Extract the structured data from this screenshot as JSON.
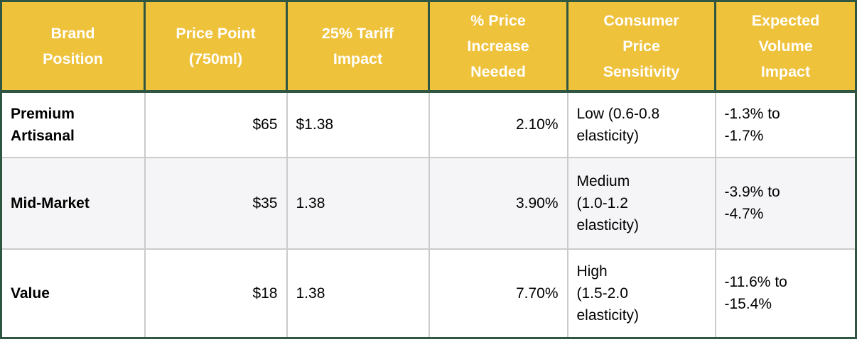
{
  "colors": {
    "header_bg": "#EFC23C",
    "header_text": "#FFFFFF",
    "outer_border": "#2E5640",
    "inner_border": "#CBCBCB",
    "alt_row_bg": "#F5F5F7",
    "body_text": "#000000"
  },
  "table": {
    "headers": [
      "Brand\nPosition",
      "Price Point\n(750ml)",
      "25% Tariff\nImpact",
      "% Price\nIncrease\nNeeded",
      "Consumer\nPrice\nSensitivity",
      "Expected\nVolume\nImpact"
    ],
    "rows": [
      {
        "cells": [
          "Premium\nArtisanal",
          "$65",
          "$1.38",
          "2.10%",
          "Low (0.6-0.8\nelasticity)",
          "-1.3% to\n-1.7%"
        ]
      },
      {
        "cells": [
          "Mid-Market",
          "$35",
          "1.38",
          "3.90%",
          "Medium\n(1.0-1.2\nelasticity)",
          "-3.9% to\n-4.7%"
        ]
      },
      {
        "cells": [
          "Value",
          "$18",
          "1.38",
          "7.70%",
          "High\n(1.5-2.0\nelasticity)",
          "-11.6% to\n-15.4%"
        ]
      }
    ]
  },
  "chart_data": {
    "type": "table",
    "columns": [
      "Brand Position",
      "Price Point (750ml)",
      "25% Tariff Impact",
      "% Price Increase Needed",
      "Consumer Price Sensitivity",
      "Expected Volume Impact"
    ],
    "rows": [
      [
        "Premium Artisanal",
        "$65",
        "$1.38",
        "2.10%",
        "Low (0.6-0.8 elasticity)",
        "-1.3% to -1.7%"
      ],
      [
        "Mid-Market",
        "$35",
        "1.38",
        "3.90%",
        "Medium (1.0-1.2 elasticity)",
        "-3.9% to -4.7%"
      ],
      [
        "Value",
        "$18",
        "1.38",
        "7.70%",
        "High (1.5-2.0 elasticity)",
        "-11.6% to -15.4%"
      ]
    ]
  }
}
